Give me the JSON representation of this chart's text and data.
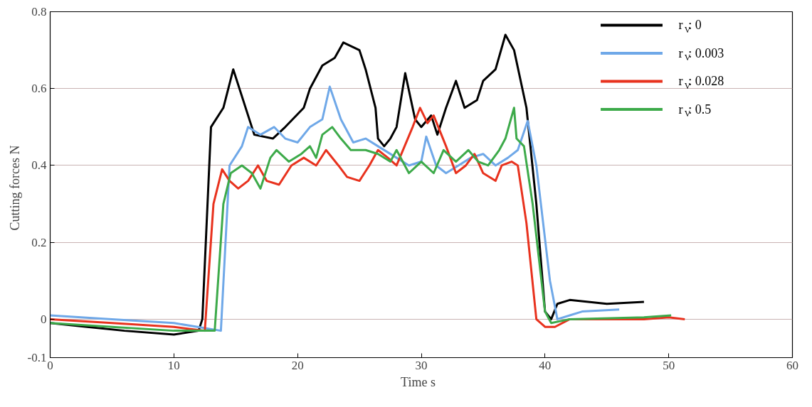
{
  "chart_data": {
    "type": "line",
    "xlabel": "Time   s",
    "ylabel": "Cutting forces   N",
    "xlim": [
      0,
      60
    ],
    "xticks": [
      0,
      10,
      20,
      30,
      40,
      50,
      60
    ],
    "ylim": [
      -0.1,
      0.8
    ],
    "yticks": [
      -0.1,
      0,
      0.2,
      0.4,
      0.6,
      0.8
    ],
    "grid": "y",
    "legend": "top right",
    "line_style": "solid",
    "marker": "none",
    "series": [
      {
        "name": "r$_{V}$: 0",
        "color": "#000000",
        "x": [
          0,
          3,
          6,
          10,
          12,
          12.3,
          13,
          14,
          14.8,
          16.5,
          18,
          19,
          20.5,
          21,
          22,
          23,
          23.7,
          25,
          25.5,
          26.3,
          26.5,
          27,
          27.5,
          28,
          28.7,
          29.5,
          30,
          30.8,
          31.3,
          32,
          32.8,
          33.5,
          34.5,
          35,
          36,
          36.8,
          37.5,
          38.5,
          39.3,
          40,
          40.5,
          41,
          42,
          45,
          48
        ],
        "values": [
          -0.01,
          -0.02,
          -0.03,
          -0.04,
          -0.03,
          0.0,
          0.5,
          0.55,
          0.65,
          0.48,
          0.47,
          0.5,
          0.55,
          0.6,
          0.66,
          0.68,
          0.72,
          0.7,
          0.65,
          0.55,
          0.47,
          0.45,
          0.47,
          0.5,
          0.64,
          0.52,
          0.5,
          0.53,
          0.48,
          0.55,
          0.62,
          0.55,
          0.57,
          0.62,
          0.65,
          0.74,
          0.7,
          0.55,
          0.3,
          0.02,
          0.0,
          0.04,
          0.05,
          0.04,
          0.045
        ]
      },
      {
        "name": "r$_{V}$: 0.003",
        "color": "#6fa8e8",
        "x": [
          0,
          5,
          10,
          13.8,
          14.5,
          15.5,
          16,
          17,
          18.1,
          19,
          20,
          21,
          22,
          22.6,
          23.5,
          24.5,
          25.5,
          26.5,
          28,
          29,
          30,
          30.4,
          31.2,
          32,
          33,
          34,
          35,
          36,
          37,
          37.8,
          38.6,
          39.3,
          40.4,
          41,
          42,
          43,
          46
        ],
        "values": [
          0.01,
          0.0,
          -0.01,
          -0.03,
          0.4,
          0.45,
          0.5,
          0.48,
          0.5,
          0.47,
          0.46,
          0.5,
          0.52,
          0.605,
          0.52,
          0.46,
          0.47,
          0.45,
          0.42,
          0.4,
          0.41,
          0.475,
          0.4,
          0.38,
          0.4,
          0.42,
          0.43,
          0.4,
          0.42,
          0.44,
          0.516,
          0.4,
          0.1,
          0.0,
          0.01,
          0.02,
          0.025
        ]
      },
      {
        "name": "r$_{V}$: 0.028",
        "color": "#e8321e",
        "x": [
          0,
          5,
          10,
          12.5,
          13.2,
          13.9,
          14.5,
          15.2,
          16,
          16.8,
          17.5,
          18.5,
          19.5,
          20.5,
          21.5,
          22.3,
          23.3,
          24,
          25,
          25.8,
          26.5,
          27.3,
          28,
          29.3,
          29.9,
          30.5,
          31,
          32,
          32.8,
          33.6,
          34.3,
          35,
          36,
          36.5,
          37.3,
          37.8,
          38.5,
          39.3,
          40,
          40.8,
          42,
          48,
          50,
          51.3
        ],
        "values": [
          0.0,
          -0.01,
          -0.02,
          -0.03,
          0.3,
          0.39,
          0.36,
          0.34,
          0.36,
          0.4,
          0.36,
          0.35,
          0.4,
          0.42,
          0.4,
          0.44,
          0.4,
          0.37,
          0.36,
          0.4,
          0.44,
          0.42,
          0.4,
          0.5,
          0.55,
          0.51,
          0.53,
          0.45,
          0.38,
          0.4,
          0.43,
          0.38,
          0.36,
          0.4,
          0.41,
          0.4,
          0.25,
          0.0,
          -0.02,
          -0.02,
          0.0,
          0.0,
          0.005,
          0.0
        ]
      },
      {
        "name": "r$_{V}$: 0.5",
        "color": "#3daa4a",
        "x": [
          0,
          5,
          10,
          13.3,
          14,
          14.6,
          15.5,
          16.3,
          17,
          17.8,
          18.3,
          19.3,
          20.3,
          21,
          21.5,
          22,
          22.8,
          23.5,
          24.3,
          25.5,
          26.5,
          27.5,
          28,
          29,
          30,
          31,
          31.8,
          32.8,
          33.8,
          34.6,
          35.4,
          36.3,
          36.8,
          37.5,
          37.7,
          38.3,
          39,
          40,
          40.5,
          42,
          48,
          50.2
        ],
        "values": [
          -0.01,
          -0.02,
          -0.03,
          -0.03,
          0.3,
          0.38,
          0.4,
          0.38,
          0.34,
          0.42,
          0.44,
          0.41,
          0.43,
          0.45,
          0.42,
          0.48,
          0.5,
          0.47,
          0.44,
          0.44,
          0.43,
          0.41,
          0.44,
          0.38,
          0.41,
          0.38,
          0.44,
          0.41,
          0.44,
          0.41,
          0.4,
          0.44,
          0.47,
          0.55,
          0.47,
          0.45,
          0.3,
          0.02,
          -0.01,
          0.0,
          0.005,
          0.01
        ]
      }
    ]
  }
}
